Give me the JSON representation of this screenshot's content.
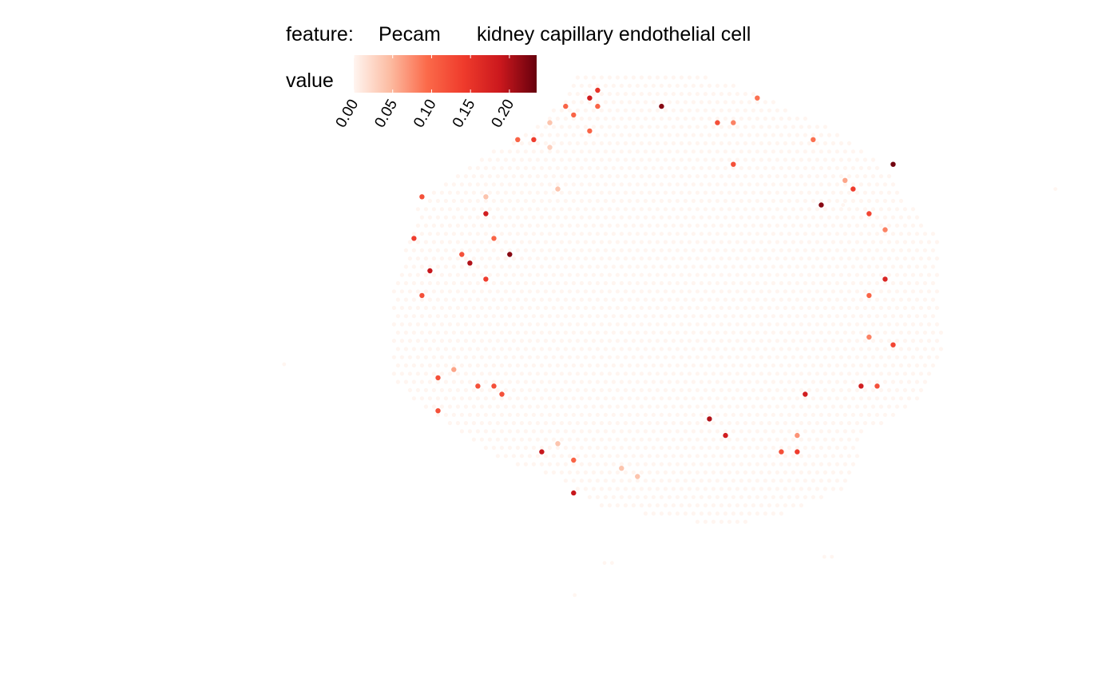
{
  "chart_data": {
    "type": "scatter",
    "plot_kind": "spatial feature plot (spot scatter)",
    "feature_label": "feature:",
    "feature_name": "Pecam",
    "cell_type": "kidney capillary endothelial cell",
    "color_legend": {
      "title": "value",
      "range": [
        0,
        0.235
      ],
      "ticks": [
        0,
        0.05,
        0.1,
        0.15,
        0.2
      ],
      "tick_labels": [
        "0.00",
        "0.05",
        "0.10",
        "0.15",
        "0.20"
      ],
      "palette": [
        "#fff5f0",
        "#fcbba1",
        "#fb6a4a",
        "#ef3b2c",
        "#cb181d",
        "#67000d"
      ]
    },
    "grid": false,
    "axes_visible": false,
    "spots_nonzero": [
      {
        "x": 6.43,
        "y": 22.3,
        "value": 0.15
      },
      {
        "x": 6.0,
        "y": 21.67,
        "value": 0.18
      },
      {
        "x": 6.43,
        "y": 21.0,
        "value": 0.1
      },
      {
        "x": 9.86,
        "y": 21.0,
        "value": 0.22
      },
      {
        "x": 4.71,
        "y": 21.0,
        "value": 0.1
      },
      {
        "x": 5.14,
        "y": 20.3,
        "value": 0.1
      },
      {
        "x": 15.0,
        "y": 21.67,
        "value": 0.09
      },
      {
        "x": 3.86,
        "y": 19.67,
        "value": 0.04
      },
      {
        "x": 12.86,
        "y": 19.67,
        "value": 0.12
      },
      {
        "x": 13.71,
        "y": 19.67,
        "value": 0.08
      },
      {
        "x": 6.0,
        "y": 19.0,
        "value": 0.1
      },
      {
        "x": 2.14,
        "y": 18.3,
        "value": 0.1
      },
      {
        "x": 3.0,
        "y": 18.3,
        "value": 0.14
      },
      {
        "x": 18.0,
        "y": 18.3,
        "value": 0.09
      },
      {
        "x": 3.86,
        "y": 17.67,
        "value": 0.03
      },
      {
        "x": 13.71,
        "y": 16.3,
        "value": 0.12
      },
      {
        "x": 22.29,
        "y": 16.3,
        "value": 0.23
      },
      {
        "x": 19.71,
        "y": 15.0,
        "value": 0.06
      },
      {
        "x": 4.29,
        "y": 14.3,
        "value": 0.04
      },
      {
        "x": 20.14,
        "y": 14.3,
        "value": 0.14
      },
      {
        "x": -3.0,
        "y": 13.67,
        "value": 0.12
      },
      {
        "x": 0.43,
        "y": 13.67,
        "value": 0.04
      },
      {
        "x": 18.43,
        "y": 13.0,
        "value": 0.22
      },
      {
        "x": 0.43,
        "y": 12.3,
        "value": 0.18
      },
      {
        "x": 21.0,
        "y": 12.3,
        "value": 0.13
      },
      {
        "x": 21.86,
        "y": 11.0,
        "value": 0.08
      },
      {
        "x": -3.43,
        "y": 10.3,
        "value": 0.14
      },
      {
        "x": 0.86,
        "y": 10.3,
        "value": 0.1
      },
      {
        "x": -0.86,
        "y": 9.0,
        "value": 0.12
      },
      {
        "x": 1.71,
        "y": 9.0,
        "value": 0.22
      },
      {
        "x": -0.43,
        "y": 8.3,
        "value": 0.2
      },
      {
        "x": -2.57,
        "y": 7.67,
        "value": 0.19
      },
      {
        "x": 0.43,
        "y": 7.0,
        "value": 0.14
      },
      {
        "x": 21.86,
        "y": 7.0,
        "value": 0.17
      },
      {
        "x": -3.0,
        "y": 5.67,
        "value": 0.12
      },
      {
        "x": 21.0,
        "y": 5.67,
        "value": 0.1
      },
      {
        "x": 21.0,
        "y": 2.3,
        "value": 0.08
      },
      {
        "x": 22.29,
        "y": 1.67,
        "value": 0.13
      },
      {
        "x": -1.29,
        "y": -0.33,
        "value": 0.06
      },
      {
        "x": -2.14,
        "y": -1.0,
        "value": 0.12
      },
      {
        "x": 0.0,
        "y": -1.67,
        "value": 0.12
      },
      {
        "x": 0.86,
        "y": -1.67,
        "value": 0.12
      },
      {
        "x": 20.57,
        "y": -1.67,
        "value": 0.18
      },
      {
        "x": 21.43,
        "y": -1.67,
        "value": 0.12
      },
      {
        "x": 1.29,
        "y": -2.33,
        "value": 0.12
      },
      {
        "x": 17.57,
        "y": -2.33,
        "value": 0.18
      },
      {
        "x": -2.14,
        "y": -3.67,
        "value": 0.12
      },
      {
        "x": 12.43,
        "y": -4.33,
        "value": 0.2
      },
      {
        "x": 13.29,
        "y": -5.67,
        "value": 0.18
      },
      {
        "x": 17.14,
        "y": -5.67,
        "value": 0.07
      },
      {
        "x": 4.29,
        "y": -6.33,
        "value": 0.04
      },
      {
        "x": 3.43,
        "y": -7.0,
        "value": 0.19
      },
      {
        "x": 16.29,
        "y": -7.0,
        "value": 0.12
      },
      {
        "x": 17.14,
        "y": -7.0,
        "value": 0.14
      },
      {
        "x": 5.14,
        "y": -7.67,
        "value": 0.1
      },
      {
        "x": 7.71,
        "y": -8.33,
        "value": 0.04
      },
      {
        "x": 8.57,
        "y": -9.0,
        "value": 0.04
      },
      {
        "x": 5.14,
        "y": -10.33,
        "value": 0.19
      }
    ]
  }
}
